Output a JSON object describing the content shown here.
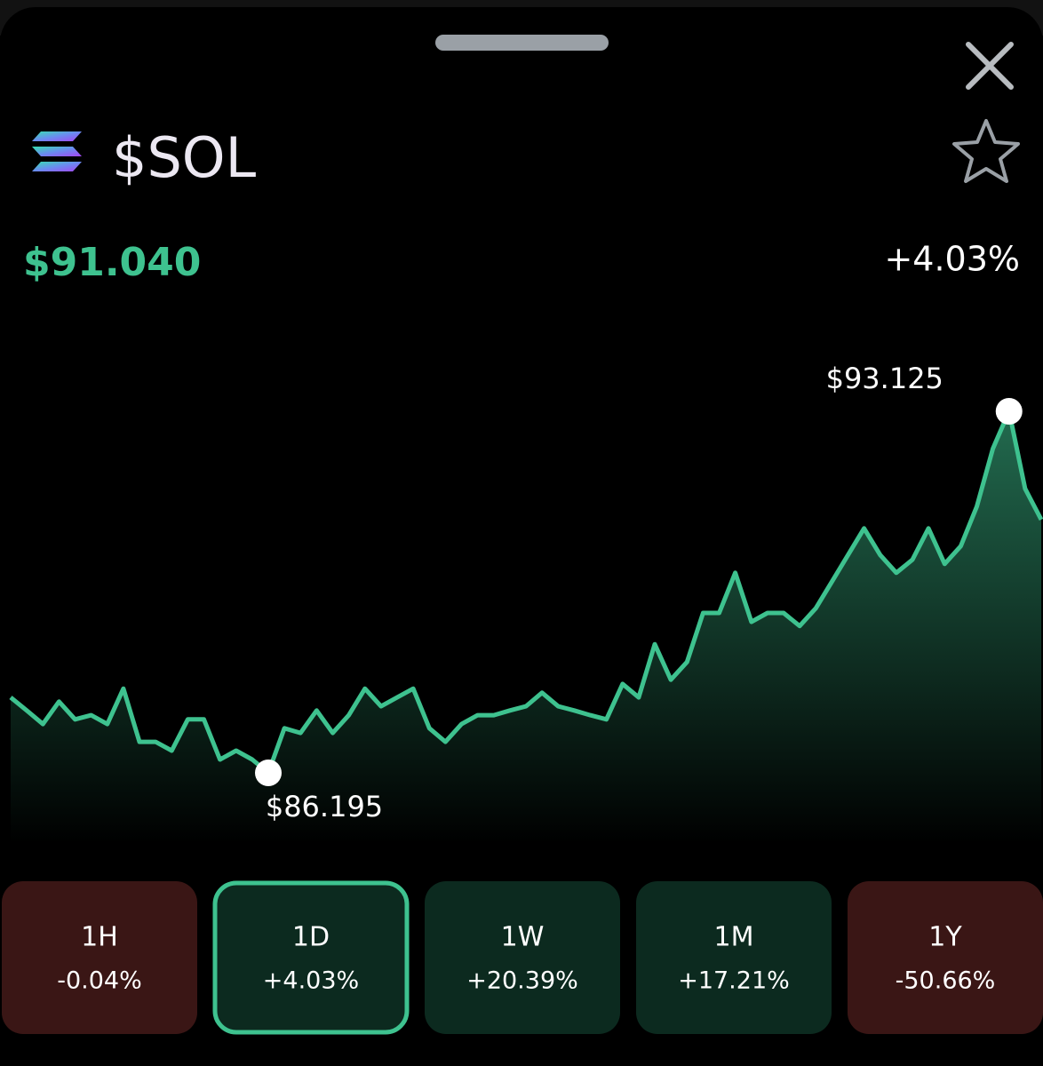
{
  "header": {
    "symbol": "$SOL",
    "price": "$91.040",
    "change": "+4.03%"
  },
  "chart_data": {
    "type": "line",
    "color": "#3ec28f",
    "values": [
      87.64,
      87.39,
      87.13,
      87.56,
      87.22,
      87.3,
      87.13,
      87.81,
      86.79,
      86.79,
      86.62,
      87.22,
      87.22,
      86.45,
      86.62,
      86.45,
      86.195,
      87.05,
      86.96,
      87.39,
      86.96,
      87.3,
      87.81,
      87.47,
      87.64,
      87.81,
      87.05,
      86.79,
      87.13,
      87.3,
      87.3,
      87.39,
      87.47,
      87.73,
      87.47,
      87.39,
      87.3,
      87.22,
      87.9,
      87.64,
      88.66,
      87.98,
      88.32,
      89.26,
      89.26,
      90.03,
      89.09,
      89.26,
      89.26,
      89.01,
      89.35,
      89.86,
      90.37,
      90.88,
      90.37,
      90.03,
      90.28,
      90.88,
      90.2,
      90.54,
      91.3,
      92.41,
      93.125,
      91.64,
      91.05
    ],
    "annotations": [
      {
        "value": 93.125,
        "label": "$93.125"
      },
      {
        "value": 86.195,
        "label": "$86.195"
      }
    ]
  },
  "tabs": [
    {
      "label": "1H",
      "change": "-0.04%",
      "color": "#3a1615",
      "selected": false
    },
    {
      "label": "1D",
      "change": "+4.03%",
      "color": "#0c2a1f",
      "selected": true
    },
    {
      "label": "1W",
      "change": "+20.39%",
      "color": "#0c2a1f",
      "selected": false
    },
    {
      "label": "1M",
      "change": "+17.21%",
      "color": "#0c2a1f",
      "selected": false
    },
    {
      "label": "1Y",
      "change": "-50.66%",
      "color": "#3a1615",
      "selected": false
    }
  ]
}
